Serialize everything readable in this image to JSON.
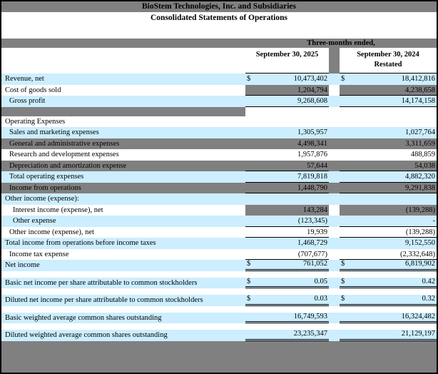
{
  "colors": {
    "row_highlight_blue": "#cceeff",
    "band_gray": "#808080",
    "text": "#000000"
  },
  "title": {
    "company": "BioStem Technologies, Inc. and Subsidiaries",
    "statement": "Consolidated Statements of Operations"
  },
  "period_header": "Three-months ended,",
  "columns": [
    {
      "label": "September 30, 2025",
      "sublabel": ""
    },
    {
      "label": "September 30, 2024",
      "sublabel": "Restated"
    }
  ],
  "rows": [
    {
      "label": "Revenue, net",
      "indent": 0,
      "bg": "blue",
      "dollar": true,
      "v1": "10,473,402",
      "v2": "18,412,816",
      "underline": "none",
      "gray_numbers": false
    },
    {
      "label": "Cost of goods sold",
      "indent": 0,
      "bg": "white",
      "dollar": false,
      "v1": "1,204,794",
      "v2": "4,238,658",
      "underline": "single",
      "gray_numbers": true
    },
    {
      "label": "Gross profit",
      "indent": 1,
      "bg": "blue",
      "dollar": false,
      "v1": "9,268,608",
      "v2": "14,174,158",
      "underline": "single",
      "gray_numbers": false
    },
    {
      "type": "blank",
      "variant": "gray-label",
      "bg": "white"
    },
    {
      "label": "Operating Expenses",
      "indent": 0,
      "bg": "white",
      "dollar": false,
      "v1": "",
      "v2": "",
      "underline": "none",
      "gray_numbers": false
    },
    {
      "label": "Sales and marketing expenses",
      "indent": 1,
      "bg": "blue",
      "dollar": false,
      "v1": "1,305,957",
      "v2": "1,027,764",
      "underline": "none",
      "gray_numbers": false
    },
    {
      "label": "General and administrative expenses",
      "indent": 1,
      "bg": "gray",
      "dollar": false,
      "v1": "4,498,341",
      "v2": "3,311,659",
      "underline": "none",
      "gray_numbers": false
    },
    {
      "label": "Research and development expenses",
      "indent": 1,
      "bg": "white",
      "dollar": false,
      "v1": "1,957,876",
      "v2": "488,859",
      "underline": "none",
      "gray_numbers": false
    },
    {
      "label": "Depreciation and amortization expense",
      "indent": 1,
      "bg": "gray",
      "dollar": false,
      "v1": "57,644",
      "v2": "54,038",
      "underline": "single",
      "gray_numbers": false
    },
    {
      "label": "Total operating expenses",
      "indent": 1,
      "bg": "blue",
      "dollar": false,
      "v1": "7,819,818",
      "v2": "4,882,320",
      "underline": "single",
      "gray_numbers": false
    },
    {
      "label": "Income from operations",
      "indent": 1,
      "bg": "gray",
      "dollar": false,
      "v1": "1,448,790",
      "v2": "9,291,838",
      "underline": "single",
      "gray_numbers": false
    },
    {
      "label": "Other income (expense):",
      "indent": 0,
      "bg": "blue",
      "dollar": false,
      "v1": "",
      "v2": "",
      "underline": "none",
      "gray_numbers": false
    },
    {
      "label": "Interest income (expense), net",
      "indent": 2,
      "bg": "white",
      "dollar": false,
      "v1": "143,284",
      "v2": "(139,288)",
      "underline": "none",
      "gray_numbers": true
    },
    {
      "label": "Other expense",
      "indent": 2,
      "bg": "blue",
      "dollar": false,
      "v1": "(123,345)",
      "v2": "-",
      "underline": "single",
      "gray_numbers": false
    },
    {
      "label": "Other income (expense), net",
      "indent": 1,
      "bg": "white",
      "dollar": false,
      "v1": "19,939",
      "v2": "(139,288)",
      "underline": "single",
      "gray_numbers": false
    },
    {
      "label": "Total income from operations before income taxes",
      "indent": 0,
      "bg": "blue",
      "dollar": false,
      "v1": "1,468,729",
      "v2": "9,152,550",
      "underline": "none",
      "gray_numbers": false
    },
    {
      "label": "Income tax expense",
      "indent": 1,
      "bg": "white",
      "dollar": false,
      "v1": "(707,677)",
      "v2": "(2,332,648)",
      "underline": "single",
      "gray_numbers": false
    },
    {
      "label": "Net income",
      "indent": 0,
      "bg": "blue",
      "dollar": true,
      "v1": "761,052",
      "v2": "6,819,902",
      "underline": "double",
      "gray_numbers": false
    },
    {
      "type": "blank",
      "variant": "plain",
      "bg": "white"
    },
    {
      "label": "Basic net income per share attributable to common stockholders",
      "indent": 0,
      "bg": "blue",
      "dollar": true,
      "v1": "0.05",
      "v2": "0.42",
      "underline": "double",
      "gray_numbers": false
    },
    {
      "type": "blank",
      "variant": "plain",
      "bg": "white"
    },
    {
      "label": "Diluted net income per share attributable to common stockholders",
      "indent": 0,
      "bg": "blue",
      "dollar": true,
      "v1": "0.03",
      "v2": "0.32",
      "underline": "double",
      "gray_numbers": false
    },
    {
      "type": "blank",
      "variant": "plain",
      "bg": "white"
    },
    {
      "label": "Basic weighted average common shares outstanding",
      "indent": 0,
      "bg": "blue",
      "dollar": false,
      "v1": "16,749,593",
      "v2": "16,324,482",
      "underline": "double",
      "gray_numbers": false
    },
    {
      "type": "blank",
      "variant": "plain",
      "bg": "white"
    },
    {
      "label": "Diluted weighted average common shares outstanding",
      "indent": 0,
      "bg": "blue",
      "dollar": false,
      "v1": "23,235,347",
      "v2": "21,129,197",
      "underline": "double",
      "gray_numbers": false
    }
  ]
}
